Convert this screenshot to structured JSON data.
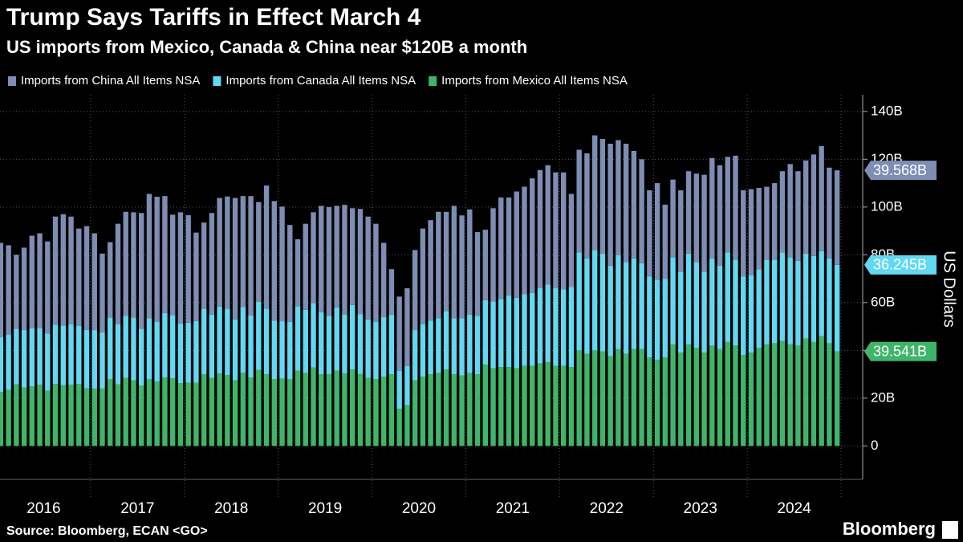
{
  "chart_data": {
    "type": "stacked-bar",
    "title": "Trump Says Tariffs in Effect March 4",
    "subtitle": "US imports from Mexico, Canada & China near $120B a month",
    "y_label": "US Dollars",
    "source": "Source: Bloomberg, ECAN <GO>",
    "brand": "Bloomberg",
    "categories": [
      "2016",
      null,
      null,
      null,
      null,
      null,
      null,
      null,
      null,
      null,
      null,
      null,
      "2017",
      null,
      null,
      null,
      null,
      null,
      null,
      null,
      null,
      null,
      null,
      null,
      "2018",
      null,
      null,
      null,
      null,
      null,
      null,
      null,
      null,
      null,
      null,
      null,
      "2019",
      null,
      null,
      null,
      null,
      null,
      null,
      null,
      null,
      null,
      null,
      null,
      "2020",
      null,
      null,
      null,
      null,
      null,
      null,
      null,
      null,
      null,
      null,
      null,
      "2021",
      null,
      null,
      null,
      null,
      null,
      null,
      null,
      null,
      null,
      null,
      null,
      "2022",
      null,
      null,
      null,
      null,
      null,
      null,
      null,
      null,
      null,
      null,
      null,
      "2023",
      null,
      null,
      null,
      null,
      null,
      null,
      null,
      null,
      null,
      null,
      null,
      "2024",
      null,
      null,
      null,
      null,
      null,
      null,
      null,
      null,
      null,
      null,
      null
    ],
    "series": [
      {
        "name": "Imports from China All Items NSA",
        "color": "#7d8db3",
        "values": [
          39.5,
          37.5,
          31.0,
          34.5,
          38.8,
          39.6,
          38.6,
          45.2,
          46.6,
          45.0,
          40.8,
          43.4,
          40.5,
          33.0,
          31.5,
          42.0,
          43.5,
          44.0,
          48.5,
          52.0,
          52.3,
          49.0,
          42.0,
          46.5,
          45.0,
          37.0,
          36.0,
          42.5,
          45.5,
          47.0,
          50.8,
          46.5,
          50.0,
          41.8,
          51.5,
          50.0,
          48.0,
          40.5,
          28.0,
          36.0,
          38.0,
          44.5,
          45.5,
          42.5,
          46.0,
          40.5,
          44.0,
          43.0,
          41.0,
          31.0,
          19.0,
          31.0,
          32.5,
          33.5,
          40.0,
          42.0,
          44.5,
          41.5,
          47.0,
          43.0,
          44.0,
          35.0,
          29.5,
          39.0,
          42.5,
          41.0,
          44.5,
          45.0,
          48.0,
          49.5,
          50.0,
          48.5,
          49.0,
          39.0,
          43.0,
          44.0,
          48.0,
          48.0,
          51.0,
          48.0,
          49.5,
          45.0,
          43.5,
          36.0,
          40.5,
          31.0,
          32.5,
          34.0,
          34.5,
          37.0,
          40.5,
          42.0,
          42.0,
          40.0,
          43.5,
          36.0,
          36.0,
          34.0,
          30.5,
          32.0,
          34.0,
          39.0,
          37.5,
          39.0,
          42.5,
          44.0,
          38.0,
          39.568
        ],
        "value_labels": [
          null,
          null,
          null,
          null,
          null,
          null,
          null,
          null,
          null,
          null,
          null,
          null,
          null,
          null,
          null,
          null,
          null,
          null,
          null,
          null,
          null,
          null,
          null,
          null,
          null,
          null,
          null,
          null,
          null,
          null,
          null,
          null,
          null,
          null,
          null,
          null,
          null,
          null,
          null,
          null,
          null,
          null,
          null,
          null,
          null,
          null,
          null,
          null,
          null,
          null,
          null,
          null,
          null,
          null,
          null,
          null,
          null,
          null,
          null,
          null,
          null,
          null,
          null,
          null,
          null,
          null,
          null,
          null,
          null,
          null,
          null,
          null,
          null,
          null,
          null,
          null,
          null,
          null,
          null,
          null,
          null,
          null,
          null,
          null,
          null,
          null,
          null,
          null,
          null,
          null,
          null,
          null,
          null,
          null,
          null,
          null,
          null,
          null,
          null,
          null,
          null,
          null,
          null,
          null,
          null,
          null,
          null,
          "39.568B"
        ]
      },
      {
        "name": "Imports from Canada All Items NSA",
        "color": "#63d8f2",
        "values": [
          22.9,
          23.0,
          23.2,
          24.0,
          24.3,
          23.8,
          23.9,
          24.8,
          25.0,
          25.4,
          24.2,
          24.5,
          24.5,
          23.5,
          25.8,
          25.2,
          26.0,
          26.3,
          23.8,
          25.6,
          25.1,
          27.0,
          26.5,
          25.0,
          25.2,
          25.8,
          27.5,
          26.5,
          28.0,
          27.8,
          25.5,
          27.5,
          26.0,
          28.5,
          27.5,
          24.5,
          24.0,
          24.0,
          27.0,
          26.5,
          27.0,
          26.0,
          24.5,
          26.5,
          24.5,
          27.0,
          25.0,
          24.5,
          24.0,
          25.0,
          25.0,
          16.0,
          16.5,
          21.0,
          22.0,
          22.5,
          23.0,
          24.5,
          23.5,
          24.0,
          24.5,
          24.5,
          27.0,
          28.0,
          28.5,
          30.0,
          29.5,
          30.0,
          30.5,
          31.5,
          32.5,
          32.5,
          32.0,
          33.5,
          41.0,
          40.0,
          42.0,
          41.0,
          38.0,
          39.5,
          38.5,
          38.0,
          36.0,
          34.0,
          33.5,
          33.0,
          36.5,
          34.0,
          38.0,
          36.0,
          34.0,
          36.5,
          35.0,
          37.5,
          36.0,
          33.0,
          32.5,
          33.0,
          35.5,
          35.0,
          37.0,
          36.5,
          35.5,
          35.5,
          36.0,
          35.5,
          35.5,
          36.245
        ],
        "value_labels": [
          null,
          null,
          null,
          null,
          null,
          null,
          null,
          null,
          null,
          null,
          null,
          null,
          null,
          null,
          null,
          null,
          null,
          null,
          null,
          null,
          null,
          null,
          null,
          null,
          null,
          null,
          null,
          null,
          null,
          null,
          null,
          null,
          null,
          null,
          null,
          null,
          null,
          null,
          null,
          null,
          null,
          null,
          null,
          null,
          null,
          null,
          null,
          null,
          null,
          null,
          null,
          null,
          null,
          null,
          null,
          null,
          null,
          null,
          null,
          null,
          null,
          null,
          null,
          null,
          null,
          null,
          null,
          null,
          null,
          null,
          null,
          null,
          null,
          null,
          null,
          null,
          null,
          null,
          null,
          null,
          null,
          null,
          null,
          null,
          null,
          null,
          null,
          null,
          null,
          null,
          null,
          null,
          null,
          null,
          null,
          null,
          null,
          null,
          null,
          null,
          null,
          null,
          null,
          null,
          null,
          null,
          null,
          "36.245B"
        ]
      },
      {
        "name": "Imports from Mexico All Items NSA",
        "color": "#3fb56a",
        "values": [
          22.6,
          23.5,
          25.8,
          24.5,
          24.9,
          25.6,
          23.1,
          26.0,
          25.4,
          25.6,
          26.0,
          24.1,
          24.0,
          24.0,
          28.0,
          25.8,
          28.5,
          27.5,
          25.2,
          27.9,
          26.9,
          28.6,
          28.3,
          26.3,
          26.4,
          26.5,
          30.0,
          28.5,
          30.3,
          29.6,
          27.5,
          30.6,
          28.6,
          31.8,
          30.0,
          28.0,
          28.2,
          28.0,
          31.5,
          30.5,
          32.8,
          30.0,
          30.0,
          31.5,
          30.4,
          32.0,
          30.2,
          28.5,
          28.0,
          29.0,
          30.0,
          15.5,
          17.0,
          27.5,
          29.0,
          30.0,
          30.5,
          32.0,
          30.0,
          29.5,
          30.5,
          30.0,
          34.0,
          32.5,
          33.0,
          33.0,
          32.5,
          33.5,
          33.5,
          34.5,
          35.0,
          33.5,
          33.5,
          33.0,
          40.0,
          38.5,
          40.0,
          39.5,
          37.5,
          40.5,
          38.5,
          40.5,
          40.5,
          37.0,
          36.0,
          37.0,
          42.5,
          39.0,
          42.5,
          41.0,
          39.0,
          42.0,
          40.5,
          43.5,
          42.0,
          38.0,
          39.0,
          41.0,
          42.5,
          43.0,
          44.0,
          42.5,
          42.0,
          45.0,
          43.5,
          46.0,
          43.0,
          39.541
        ],
        "value_labels": [
          null,
          null,
          null,
          null,
          null,
          null,
          null,
          null,
          null,
          null,
          null,
          null,
          null,
          null,
          null,
          null,
          null,
          null,
          null,
          null,
          null,
          null,
          null,
          null,
          null,
          null,
          null,
          null,
          null,
          null,
          null,
          null,
          null,
          null,
          null,
          null,
          null,
          null,
          null,
          null,
          null,
          null,
          null,
          null,
          null,
          null,
          null,
          null,
          null,
          null,
          null,
          null,
          null,
          null,
          null,
          null,
          null,
          null,
          null,
          null,
          null,
          null,
          null,
          null,
          null,
          null,
          null,
          null,
          null,
          null,
          null,
          null,
          null,
          null,
          null,
          null,
          null,
          null,
          null,
          null,
          null,
          null,
          null,
          null,
          null,
          null,
          null,
          null,
          null,
          null,
          null,
          null,
          null,
          null,
          null,
          null,
          null,
          null,
          null,
          null,
          null,
          null,
          null,
          null,
          null,
          null,
          null,
          "39.541B"
        ]
      }
    ],
    "ylim": [
      -14,
      147
    ],
    "yticks": [
      0,
      {
        "value": 20,
        "label": "20B"
      },
      {
        "value": 40,
        "label": "40B"
      },
      {
        "value": 60,
        "label": "60B"
      },
      {
        "value": 80,
        "label": "80B"
      },
      {
        "value": 100,
        "label": "100B"
      },
      {
        "value": 120,
        "label": "120B"
      },
      {
        "value": 140,
        "label": "140B"
      }
    ],
    "grid": true,
    "legend": "top-left"
  }
}
